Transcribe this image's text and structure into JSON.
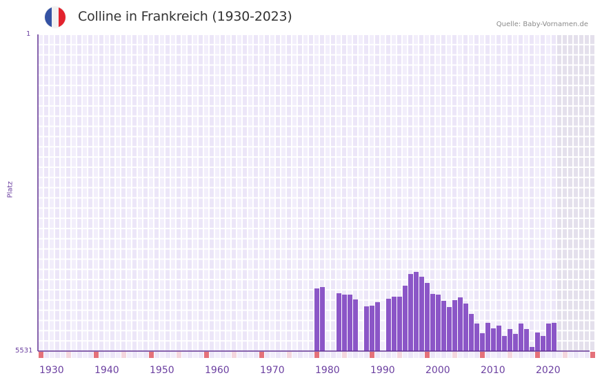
{
  "header": {
    "title": "Colline in Frankreich (1930-2023)",
    "source": "Quelle: Baby-Vornamen.de",
    "flag_icon": "france-flag-icon",
    "flag_colors": [
      "#3452a3",
      "#f1f1f1",
      "#e2232e"
    ]
  },
  "axis": {
    "y_top_label": "1",
    "y_bottom_label": "5531",
    "y_title": "Platz"
  },
  "colors": {
    "bar": "#8b56c7",
    "axis": "#5e2f91",
    "grid_bg_a": "#f2eefb",
    "grid_bg_b": "#ece6f8",
    "future_bg": "#e4e0ec",
    "tick_major": "#e4717a",
    "tick_minor": "#f4d6de",
    "label": "#6b3fa0"
  },
  "chart_data": {
    "type": "bar",
    "title": "Colline in Frankreich (1930-2023)",
    "xlabel": "",
    "ylabel": "Platz",
    "y_inverted": true,
    "ylim": [
      1,
      5531
    ],
    "xlim": [
      1930,
      2030
    ],
    "x_tick_labels": [
      "1930",
      "1940",
      "1950",
      "1960",
      "1970",
      "1980",
      "1990",
      "2000",
      "2010",
      "2020"
    ],
    "grid": true,
    "legend": null,
    "series": [
      {
        "name": "Platz",
        "points": [
          {
            "year": 1980,
            "rank": 4437
          },
          {
            "year": 1981,
            "rank": 4413
          },
          {
            "year": 1984,
            "rank": 4521
          },
          {
            "year": 1985,
            "rank": 4545
          },
          {
            "year": 1986,
            "rank": 4545
          },
          {
            "year": 1987,
            "rank": 4629
          },
          {
            "year": 1989,
            "rank": 4750
          },
          {
            "year": 1990,
            "rank": 4738
          },
          {
            "year": 1991,
            "rank": 4677
          },
          {
            "year": 1993,
            "rank": 4617
          },
          {
            "year": 1994,
            "rank": 4581
          },
          {
            "year": 1995,
            "rank": 4581
          },
          {
            "year": 1996,
            "rank": 4389
          },
          {
            "year": 1997,
            "rank": 4185
          },
          {
            "year": 1998,
            "rank": 4148
          },
          {
            "year": 1999,
            "rank": 4233
          },
          {
            "year": 2000,
            "rank": 4341
          },
          {
            "year": 2001,
            "rank": 4533
          },
          {
            "year": 2002,
            "rank": 4545
          },
          {
            "year": 2003,
            "rank": 4653
          },
          {
            "year": 2004,
            "rank": 4762
          },
          {
            "year": 2005,
            "rank": 4641
          },
          {
            "year": 2006,
            "rank": 4593
          },
          {
            "year": 2007,
            "rank": 4701
          },
          {
            "year": 2008,
            "rank": 4882
          },
          {
            "year": 2009,
            "rank": 5050
          },
          {
            "year": 2010,
            "rank": 5219
          },
          {
            "year": 2011,
            "rank": 5038
          },
          {
            "year": 2012,
            "rank": 5134
          },
          {
            "year": 2013,
            "rank": 5086
          },
          {
            "year": 2014,
            "rank": 5267
          },
          {
            "year": 2015,
            "rank": 5146
          },
          {
            "year": 2016,
            "rank": 5231
          },
          {
            "year": 2017,
            "rank": 5050
          },
          {
            "year": 2018,
            "rank": 5146
          },
          {
            "year": 2019,
            "rank": 5459
          },
          {
            "year": 2020,
            "rank": 5207
          },
          {
            "year": 2021,
            "rank": 5267
          },
          {
            "year": 2022,
            "rank": 5050
          },
          {
            "year": 2023,
            "rank": 5038
          }
        ]
      }
    ]
  }
}
